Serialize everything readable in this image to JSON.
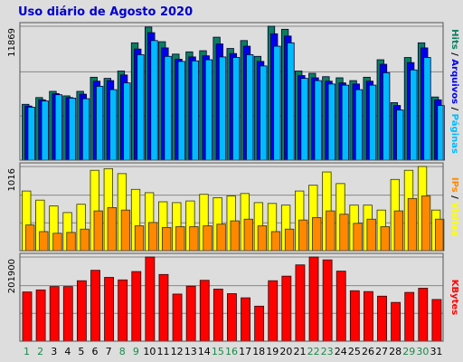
{
  "title": "Uso diário de Agosto 2020",
  "chart_data": [
    {
      "type": "bar",
      "panel": "top",
      "categories": [
        "1",
        "2",
        "3",
        "4",
        "5",
        "6",
        "7",
        "8",
        "9",
        "10",
        "11",
        "12",
        "13",
        "14",
        "15",
        "16",
        "17",
        "18",
        "19",
        "20",
        "21",
        "22",
        "23",
        "24",
        "25",
        "26",
        "27",
        "28",
        "29",
        "30",
        "31"
      ],
      "weekend_days": [
        "1",
        "2",
        "8",
        "9",
        "15",
        "16",
        "22",
        "23",
        "29",
        "30"
      ],
      "y_tick": "11869",
      "ylim": [
        0,
        11869
      ],
      "grid": true,
      "series": [
        {
          "name": "Hits",
          "color": "#0b7e5e",
          "values": [
            4950,
            5550,
            6100,
            5700,
            6100,
            7350,
            7250,
            7900,
            10400,
            11800,
            10500,
            9400,
            9600,
            9700,
            10900,
            9900,
            10600,
            9200,
            11869,
            11600,
            7900,
            7700,
            7400,
            7300,
            7050,
            7350,
            8900,
            5100,
            9100,
            10400,
            5600
          ]
        },
        {
          "name": "Arquivos",
          "color": "#0000ee",
          "values": [
            4800,
            5350,
            5900,
            5550,
            5850,
            7000,
            7050,
            7550,
            9850,
            11300,
            9950,
            8950,
            9150,
            9250,
            10300,
            9450,
            10100,
            8750,
            11200,
            11000,
            7500,
            7300,
            7000,
            6850,
            6750,
            7000,
            8500,
            4850,
            8650,
            9950,
            5350
          ]
        },
        {
          "name": "Páginas",
          "color": "#00bbff",
          "values": [
            4700,
            5250,
            5800,
            5500,
            5450,
            6550,
            6250,
            6850,
            9350,
            10600,
            9200,
            8750,
            8800,
            8900,
            9150,
            9100,
            9350,
            8350,
            10100,
            10400,
            7250,
            7050,
            6750,
            6650,
            6250,
            6650,
            7750,
            4450,
            8000,
            9100,
            4850
          ]
        }
      ],
      "ylabel_parts": [
        "Hits",
        "Arquivos",
        "Páginas"
      ]
    },
    {
      "type": "bar",
      "panel": "middle",
      "categories": [
        "1",
        "2",
        "3",
        "4",
        "5",
        "6",
        "7",
        "8",
        "9",
        "10",
        "11",
        "12",
        "13",
        "14",
        "15",
        "16",
        "17",
        "18",
        "19",
        "20",
        "21",
        "22",
        "23",
        "24",
        "25",
        "26",
        "27",
        "28",
        "29",
        "30",
        "31"
      ],
      "y_tick": "1016",
      "ylim": [
        0,
        1016
      ],
      "grid": true,
      "series": [
        {
          "name": "Visitas",
          "color": "#ffff00",
          "values": [
            720,
            610,
            540,
            460,
            560,
            970,
            990,
            930,
            740,
            700,
            590,
            580,
            600,
            680,
            640,
            660,
            690,
            580,
            570,
            550,
            720,
            790,
            950,
            810,
            550,
            550,
            490,
            860,
            970,
            1016,
            490
          ]
        },
        {
          "name": "IPs",
          "color": "#ff8800",
          "values": [
            310,
            230,
            210,
            220,
            260,
            480,
            520,
            490,
            300,
            340,
            280,
            290,
            290,
            300,
            320,
            360,
            380,
            300,
            230,
            260,
            370,
            400,
            480,
            440,
            330,
            380,
            290,
            480,
            630,
            660,
            380
          ]
        }
      ],
      "ylabel_parts": [
        "IPs",
        "Visitas"
      ]
    },
    {
      "type": "bar",
      "panel": "bottom",
      "categories": [
        "1",
        "2",
        "3",
        "4",
        "5",
        "6",
        "7",
        "8",
        "9",
        "10",
        "11",
        "12",
        "13",
        "14",
        "15",
        "16",
        "17",
        "18",
        "19",
        "20",
        "21",
        "22",
        "23",
        "24",
        "25",
        "26",
        "27",
        "28",
        "29",
        "30",
        "31"
      ],
      "y_tick": "201900",
      "ylim": [
        0,
        201900
      ],
      "grid": true,
      "series": [
        {
          "name": "KBytes",
          "color": "#ff0000",
          "values": [
            118000,
            123000,
            131000,
            131000,
            145000,
            170000,
            153000,
            147000,
            167000,
            201900,
            160000,
            113000,
            132000,
            146000,
            125000,
            114000,
            104000,
            84000,
            145000,
            156000,
            183000,
            201900,
            195000,
            168000,
            121000,
            119000,
            108000,
            93000,
            117000,
            127000,
            100000
          ]
        }
      ],
      "ylabel_parts": [
        "KBytes"
      ]
    }
  ]
}
